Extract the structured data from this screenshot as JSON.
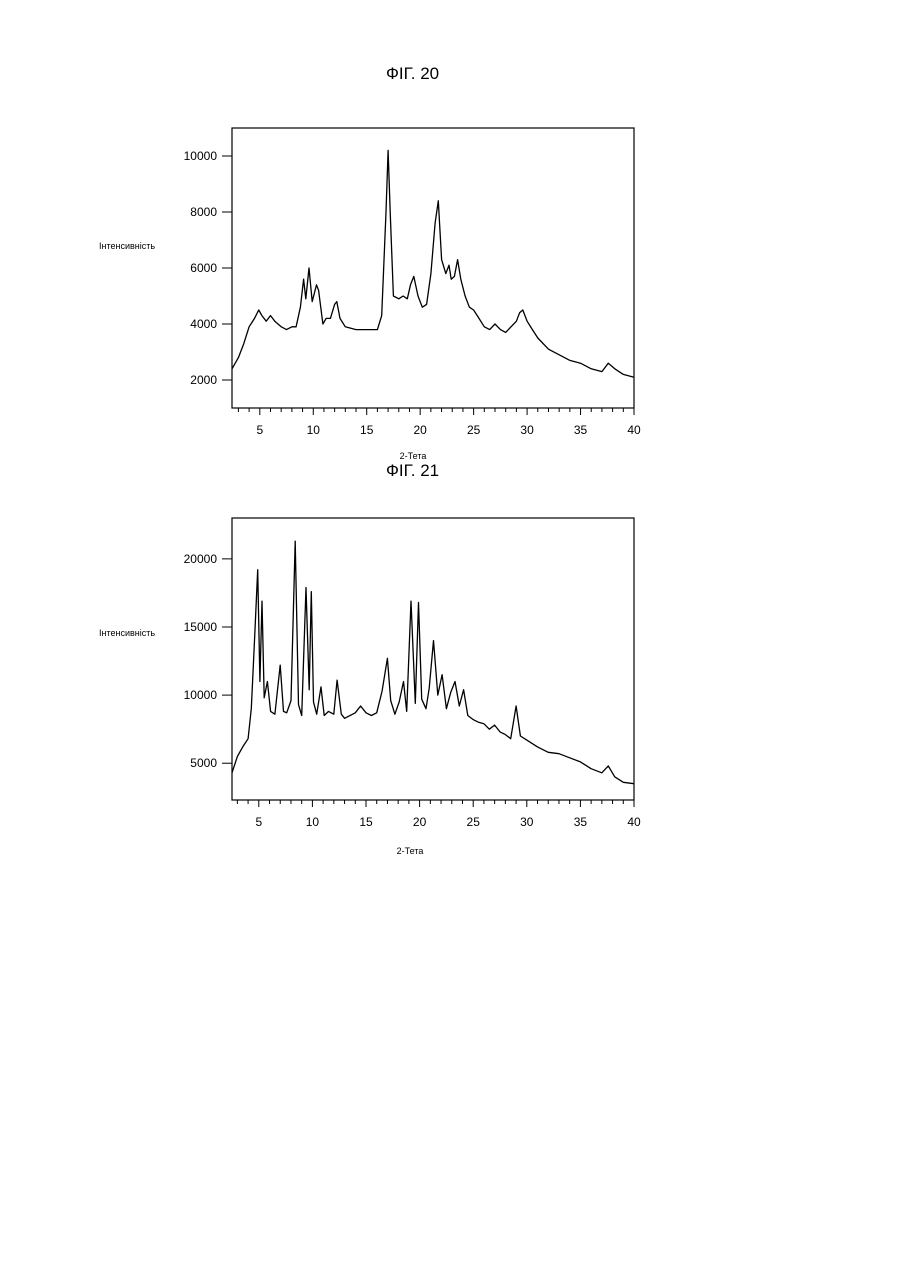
{
  "figures": [
    {
      "title": "ФІГ. 20"
    },
    {
      "title": "ФІГ. 21"
    }
  ],
  "chart_data": [
    {
      "type": "line",
      "title": "ФІГ. 20",
      "xlabel": "2-Тета",
      "ylabel": "Інтенсивність",
      "xlim": [
        2.4,
        40
      ],
      "ylim": [
        1000,
        11000
      ],
      "xticks": [
        5,
        10,
        15,
        20,
        25,
        30,
        35,
        40
      ],
      "yticks": [
        2000,
        4000,
        6000,
        8000,
        10000
      ],
      "grid": false,
      "series": [
        {
          "x": [
            2.4,
            3,
            3.5,
            4,
            4.5,
            4.9,
            5.2,
            5.6,
            6,
            6.4,
            7,
            7.5,
            8,
            8.4,
            8.8,
            9.1,
            9.3,
            9.6,
            9.9,
            10.3,
            10.5,
            10.9,
            11.2,
            11.6,
            12,
            12.2,
            12.5,
            13,
            14,
            15,
            16,
            16.4,
            16.8,
            17.0,
            17.2,
            17.5,
            18,
            18.4,
            18.8,
            19.1,
            19.4,
            19.8,
            20.2,
            20.6,
            21,
            21.4,
            21.7,
            22,
            22.4,
            22.7,
            22.9,
            23.2,
            23.5,
            23.8,
            24.2,
            24.6,
            25,
            25.5,
            26,
            26.5,
            27,
            27.5,
            28,
            28.5,
            29,
            29.3,
            29.6,
            30,
            30.5,
            31,
            32,
            33,
            34,
            35,
            36,
            37,
            37.6,
            38.2,
            39,
            40
          ],
          "y": [
            2400,
            2800,
            3300,
            3900,
            4200,
            4500,
            4300,
            4100,
            4300,
            4100,
            3900,
            3800,
            3900,
            3900,
            4600,
            5600,
            4900,
            6000,
            4800,
            5400,
            5200,
            4000,
            4200,
            4200,
            4700,
            4800,
            4200,
            3900,
            3800,
            3800,
            3800,
            4300,
            8000,
            10200,
            8000,
            5000,
            4900,
            5000,
            4900,
            5400,
            5700,
            5000,
            4600,
            4700,
            5800,
            7600,
            8400,
            6300,
            5800,
            6100,
            5600,
            5700,
            6300,
            5600,
            5000,
            4600,
            4500,
            4200,
            3900,
            3800,
            4000,
            3800,
            3700,
            3900,
            4100,
            4400,
            4500,
            4100,
            3800,
            3500,
            3100,
            2900,
            2700,
            2600,
            2400,
            2300,
            2600,
            2400,
            2200,
            2100
          ]
        }
      ]
    },
    {
      "type": "line",
      "title": "ФІГ. 21",
      "xlabel": "2-Тета",
      "ylabel": "Інтенсивність",
      "xlim": [
        2.5,
        40
      ],
      "ylim": [
        2300,
        23000
      ],
      "xticks": [
        5,
        10,
        15,
        20,
        25,
        30,
        35,
        40
      ],
      "yticks": [
        5000,
        10000,
        15000,
        20000
      ],
      "grid": false,
      "series": [
        {
          "x": [
            2.5,
            3,
            3.5,
            4,
            4.3,
            4.6,
            4.9,
            5.1,
            5.3,
            5.5,
            5.8,
            6.1,
            6.5,
            7,
            7.3,
            7.6,
            8,
            8.4,
            8.7,
            9.0,
            9.4,
            9.7,
            9.9,
            10.1,
            10.4,
            10.8,
            11.1,
            11.5,
            12,
            12.3,
            12.7,
            13,
            14,
            14.5,
            15,
            15.5,
            16,
            16.5,
            17.0,
            17.3,
            17.7,
            18.1,
            18.5,
            18.8,
            19.2,
            19.6,
            19.9,
            20.2,
            20.6,
            20.9,
            21.3,
            21.7,
            22.1,
            22.5,
            22.9,
            23.3,
            23.7,
            24.1,
            24.5,
            25,
            25.5,
            26,
            26.5,
            27,
            27.5,
            28,
            28.5,
            29,
            29.4,
            30,
            31,
            32,
            33,
            34,
            35,
            36,
            37,
            37.6,
            38.2,
            39,
            40
          ],
          "y": [
            4300,
            5500,
            6200,
            6800,
            9000,
            14000,
            19200,
            11000,
            16900,
            9800,
            11000,
            8800,
            8600,
            12200,
            8800,
            8700,
            9600,
            21300,
            9300,
            8500,
            17900,
            10400,
            17600,
            9500,
            8600,
            10600,
            8500,
            8800,
            8600,
            11100,
            8600,
            8300,
            8700,
            9200,
            8700,
            8500,
            8700,
            10300,
            12700,
            9600,
            8600,
            9500,
            11000,
            8800,
            16900,
            9400,
            16800,
            9700,
            9000,
            10500,
            14000,
            10000,
            11500,
            9000,
            10200,
            11000,
            9200,
            10400,
            8500,
            8200,
            8000,
            7900,
            7500,
            7800,
            7300,
            7100,
            6800,
            9200,
            7000,
            6700,
            6200,
            5800,
            5700,
            5400,
            5100,
            4600,
            4300,
            4800,
            4000,
            3600,
            3500
          ]
        }
      ]
    }
  ]
}
